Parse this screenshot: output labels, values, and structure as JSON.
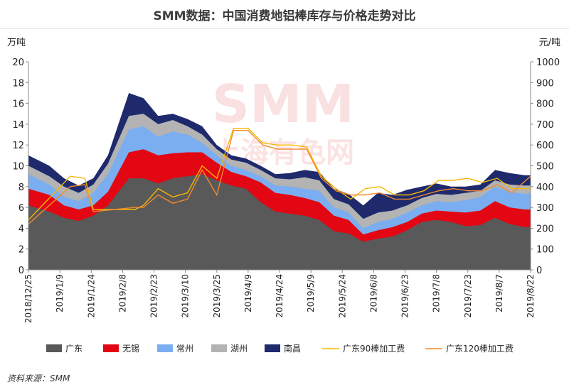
{
  "title": "SMM数据：中国消费地铝棒库存与价格走势对比",
  "source": "资料来源：SMM",
  "watermark": {
    "main": "SMM",
    "sub": "上海有色网"
  },
  "chart_data": {
    "type": "area",
    "left_unit": "万吨",
    "right_unit": "元/吨",
    "ylim_left": [
      0,
      20
    ],
    "yticks_left": [
      0,
      2,
      4,
      6,
      8,
      10,
      12,
      14,
      16,
      18,
      20
    ],
    "ylim_right": [
      0,
      1000
    ],
    "yticks_right": [
      0,
      100,
      200,
      300,
      400,
      500,
      600,
      700,
      800,
      900,
      1000
    ],
    "x_tick_labels": [
      "2018/12/25",
      "2019/1/9",
      "2019/1/24",
      "2019/2/8",
      "2019/2/23",
      "2019/3/10",
      "2019/3/25",
      "2019/4/9",
      "2019/4/24",
      "2019/5/9",
      "2019/5/24",
      "2019/6/8",
      "2019/6/23",
      "2019/7/8",
      "2019/7/23",
      "2019/8/7",
      "2019/8/22"
    ],
    "x_range": [
      "2018/12/25",
      "2019/8/22"
    ],
    "area_series": [
      {
        "name": "广东",
        "color": "#595959",
        "points": [
          [
            "2018/12/25",
            6.2
          ],
          [
            "2019/1/4",
            5.6
          ],
          [
            "2019/1/11",
            5.0
          ],
          [
            "2019/1/18",
            4.7
          ],
          [
            "2019/1/25",
            5.2
          ],
          [
            "2019/2/1",
            6.2
          ],
          [
            "2019/2/11",
            8.8
          ],
          [
            "2019/2/18",
            8.8
          ],
          [
            "2019/2/25",
            8.3
          ],
          [
            "2019/3/4",
            8.8
          ],
          [
            "2019/3/11",
            9.0
          ],
          [
            "2019/3/18",
            9.2
          ],
          [
            "2019/3/25",
            8.6
          ],
          [
            "2019/4/1",
            8.1
          ],
          [
            "2019/4/8",
            7.8
          ],
          [
            "2019/4/15",
            6.5
          ],
          [
            "2019/4/22",
            5.6
          ],
          [
            "2019/4/29",
            5.4
          ],
          [
            "2019/5/6",
            5.2
          ],
          [
            "2019/5/13",
            4.8
          ],
          [
            "2019/5/20",
            3.7
          ],
          [
            "2019/5/27",
            3.5
          ],
          [
            "2019/6/3",
            2.7
          ],
          [
            "2019/6/10",
            3.0
          ],
          [
            "2019/6/17",
            3.2
          ],
          [
            "2019/6/24",
            3.8
          ],
          [
            "2019/7/1",
            4.6
          ],
          [
            "2019/7/8",
            4.8
          ],
          [
            "2019/7/15",
            4.6
          ],
          [
            "2019/7/22",
            4.2
          ],
          [
            "2019/7/29",
            4.3
          ],
          [
            "2019/8/5",
            5.0
          ],
          [
            "2019/8/12",
            4.4
          ],
          [
            "2019/8/19",
            4.1
          ],
          [
            "2019/8/22",
            4.1
          ]
        ]
      },
      {
        "name": "无锡",
        "color": "#e30613",
        "points": [
          [
            "2018/12/25",
            7.8
          ],
          [
            "2019/1/4",
            7.2
          ],
          [
            "2019/1/11",
            6.2
          ],
          [
            "2019/1/18",
            5.8
          ],
          [
            "2019/1/25",
            6.2
          ],
          [
            "2019/2/1",
            7.5
          ],
          [
            "2019/2/11",
            11.3
          ],
          [
            "2019/2/18",
            11.6
          ],
          [
            "2019/2/25",
            11.0
          ],
          [
            "2019/3/4",
            11.2
          ],
          [
            "2019/3/11",
            11.3
          ],
          [
            "2019/3/18",
            11.3
          ],
          [
            "2019/3/25",
            10.3
          ],
          [
            "2019/4/1",
            9.4
          ],
          [
            "2019/4/8",
            9.0
          ],
          [
            "2019/4/15",
            8.4
          ],
          [
            "2019/4/22",
            7.4
          ],
          [
            "2019/4/29",
            7.2
          ],
          [
            "2019/5/6",
            6.9
          ],
          [
            "2019/5/13",
            6.5
          ],
          [
            "2019/5/20",
            5.2
          ],
          [
            "2019/5/27",
            4.8
          ],
          [
            "2019/6/3",
            3.4
          ],
          [
            "2019/6/10",
            3.8
          ],
          [
            "2019/6/17",
            4.1
          ],
          [
            "2019/6/24",
            4.6
          ],
          [
            "2019/7/1",
            5.4
          ],
          [
            "2019/7/8",
            5.7
          ],
          [
            "2019/7/15",
            5.6
          ],
          [
            "2019/7/22",
            5.5
          ],
          [
            "2019/7/29",
            5.7
          ],
          [
            "2019/8/5",
            6.6
          ],
          [
            "2019/8/12",
            6.0
          ],
          [
            "2019/8/19",
            5.8
          ],
          [
            "2019/8/22",
            5.8
          ]
        ]
      },
      {
        "name": "常州",
        "color": "#7aaef0",
        "points": [
          [
            "2018/12/25",
            9.2
          ],
          [
            "2019/1/4",
            8.2
          ],
          [
            "2019/1/11",
            7.0
          ],
          [
            "2019/1/18",
            6.6
          ],
          [
            "2019/1/25",
            7.4
          ],
          [
            "2019/2/1",
            9.2
          ],
          [
            "2019/2/11",
            13.5
          ],
          [
            "2019/2/18",
            13.8
          ],
          [
            "2019/2/25",
            12.8
          ],
          [
            "2019/3/4",
            13.3
          ],
          [
            "2019/3/11",
            13.0
          ],
          [
            "2019/3/18",
            12.2
          ],
          [
            "2019/3/25",
            11.0
          ],
          [
            "2019/4/1",
            10.0
          ],
          [
            "2019/4/8",
            9.6
          ],
          [
            "2019/4/15",
            9.0
          ],
          [
            "2019/4/22",
            8.1
          ],
          [
            "2019/4/29",
            8.0
          ],
          [
            "2019/5/6",
            7.8
          ],
          [
            "2019/5/13",
            7.6
          ],
          [
            "2019/5/20",
            6.0
          ],
          [
            "2019/5/27",
            5.5
          ],
          [
            "2019/6/3",
            4.0
          ],
          [
            "2019/6/10",
            4.6
          ],
          [
            "2019/6/17",
            4.9
          ],
          [
            "2019/6/24",
            5.5
          ],
          [
            "2019/7/1",
            6.2
          ],
          [
            "2019/7/8",
            6.6
          ],
          [
            "2019/7/15",
            6.5
          ],
          [
            "2019/7/22",
            6.7
          ],
          [
            "2019/7/29",
            7.0
          ],
          [
            "2019/8/5",
            8.0
          ],
          [
            "2019/8/12",
            7.5
          ],
          [
            "2019/8/19",
            7.3
          ],
          [
            "2019/8/22",
            7.4
          ]
        ]
      },
      {
        "name": "湖州",
        "color": "#b3b3b3",
        "points": [
          [
            "2018/12/25",
            10.0
          ],
          [
            "2019/1/4",
            9.0
          ],
          [
            "2019/1/11",
            8.0
          ],
          [
            "2019/1/18",
            7.4
          ],
          [
            "2019/1/25",
            8.2
          ],
          [
            "2019/2/1",
            10.2
          ],
          [
            "2019/2/11",
            14.8
          ],
          [
            "2019/2/18",
            15.0
          ],
          [
            "2019/2/25",
            14.0
          ],
          [
            "2019/3/4",
            14.4
          ],
          [
            "2019/3/11",
            13.8
          ],
          [
            "2019/3/18",
            13.0
          ],
          [
            "2019/3/25",
            11.6
          ],
          [
            "2019/4/1",
            10.6
          ],
          [
            "2019/4/8",
            10.3
          ],
          [
            "2019/4/15",
            9.6
          ],
          [
            "2019/4/22",
            8.8
          ],
          [
            "2019/4/29",
            8.7
          ],
          [
            "2019/5/6",
            8.9
          ],
          [
            "2019/5/13",
            8.6
          ],
          [
            "2019/5/20",
            6.8
          ],
          [
            "2019/5/27",
            6.3
          ],
          [
            "2019/6/3",
            4.9
          ],
          [
            "2019/6/10",
            5.5
          ],
          [
            "2019/6/17",
            5.7
          ],
          [
            "2019/6/24",
            6.2
          ],
          [
            "2019/7/1",
            6.9
          ],
          [
            "2019/7/8",
            7.3
          ],
          [
            "2019/7/15",
            7.2
          ],
          [
            "2019/7/22",
            7.4
          ],
          [
            "2019/7/29",
            7.6
          ],
          [
            "2019/8/5",
            8.6
          ],
          [
            "2019/8/12",
            8.2
          ],
          [
            "2019/8/19",
            8.1
          ],
          [
            "2019/8/22",
            8.1
          ]
        ]
      },
      {
        "name": "南昌",
        "color": "#1e2a6c",
        "points": [
          [
            "2018/12/25",
            11.0
          ],
          [
            "2019/1/4",
            10.0
          ],
          [
            "2019/1/11",
            8.8
          ],
          [
            "2019/1/18",
            8.1
          ],
          [
            "2019/1/25",
            8.8
          ],
          [
            "2019/2/1",
            11.0
          ],
          [
            "2019/2/11",
            17.0
          ],
          [
            "2019/2/18",
            16.5
          ],
          [
            "2019/2/25",
            14.8
          ],
          [
            "2019/3/4",
            15.0
          ],
          [
            "2019/3/11",
            14.5
          ],
          [
            "2019/3/18",
            13.8
          ],
          [
            "2019/3/25",
            12.0
          ],
          [
            "2019/4/1",
            11.0
          ],
          [
            "2019/4/8",
            10.7
          ],
          [
            "2019/4/15",
            10.0
          ],
          [
            "2019/4/22",
            9.2
          ],
          [
            "2019/4/29",
            9.3
          ],
          [
            "2019/5/6",
            9.6
          ],
          [
            "2019/5/13",
            9.4
          ],
          [
            "2019/5/20",
            7.8
          ],
          [
            "2019/5/27",
            7.3
          ],
          [
            "2019/6/3",
            6.2
          ],
          [
            "2019/6/10",
            7.4
          ],
          [
            "2019/6/17",
            7.2
          ],
          [
            "2019/6/24",
            7.7
          ],
          [
            "2019/7/1",
            8.0
          ],
          [
            "2019/7/8",
            8.3
          ],
          [
            "2019/7/15",
            8.0
          ],
          [
            "2019/7/22",
            8.0
          ],
          [
            "2019/7/29",
            8.2
          ],
          [
            "2019/8/5",
            9.6
          ],
          [
            "2019/8/12",
            9.3
          ],
          [
            "2019/8/19",
            9.1
          ],
          [
            "2019/8/22",
            9.1
          ]
        ]
      }
    ],
    "line_series": [
      {
        "name": "广东90棒加工费",
        "color": "#f5b800",
        "points": [
          [
            "2018/12/25",
            240
          ],
          [
            "2019/1/14",
            450
          ],
          [
            "2019/1/21",
            440
          ],
          [
            "2019/1/25",
            290
          ],
          [
            "2019/2/14",
            290
          ],
          [
            "2019/2/18",
            310
          ],
          [
            "2019/2/25",
            390
          ],
          [
            "2019/3/4",
            350
          ],
          [
            "2019/3/11",
            370
          ],
          [
            "2019/3/18",
            500
          ],
          [
            "2019/3/25",
            440
          ],
          [
            "2019/4/2",
            680
          ],
          [
            "2019/4/9",
            680
          ],
          [
            "2019/4/16",
            610
          ],
          [
            "2019/4/23",
            600
          ],
          [
            "2019/4/30",
            600
          ],
          [
            "2019/5/7",
            590
          ],
          [
            "2019/5/14",
            450
          ],
          [
            "2019/5/21",
            390
          ],
          [
            "2019/5/28",
            340
          ],
          [
            "2019/6/4",
            390
          ],
          [
            "2019/6/11",
            400
          ],
          [
            "2019/6/18",
            360
          ],
          [
            "2019/6/25",
            360
          ],
          [
            "2019/7/2",
            380
          ],
          [
            "2019/7/9",
            430
          ],
          [
            "2019/7/16",
            430
          ],
          [
            "2019/7/23",
            440
          ],
          [
            "2019/7/30",
            420
          ],
          [
            "2019/8/6",
            440
          ],
          [
            "2019/8/13",
            390
          ],
          [
            "2019/8/22",
            390
          ]
        ]
      },
      {
        "name": "广东120棒加工费",
        "color": "#f28a2e",
        "points": [
          [
            "2018/12/25",
            220
          ],
          [
            "2019/1/14",
            400
          ],
          [
            "2019/1/21",
            410
          ],
          [
            "2019/1/25",
            280
          ],
          [
            "2019/2/14",
            300
          ],
          [
            "2019/2/18",
            300
          ],
          [
            "2019/2/25",
            360
          ],
          [
            "2019/3/4",
            320
          ],
          [
            "2019/3/11",
            340
          ],
          [
            "2019/3/18",
            480
          ],
          [
            "2019/3/25",
            360
          ],
          [
            "2019/4/2",
            670
          ],
          [
            "2019/4/9",
            670
          ],
          [
            "2019/4/16",
            600
          ],
          [
            "2019/4/23",
            580
          ],
          [
            "2019/4/30",
            580
          ],
          [
            "2019/5/7",
            580
          ],
          [
            "2019/5/14",
            440
          ],
          [
            "2019/5/21",
            380
          ],
          [
            "2019/5/28",
            360
          ],
          [
            "2019/6/4",
            360
          ],
          [
            "2019/6/11",
            370
          ],
          [
            "2019/6/18",
            340
          ],
          [
            "2019/6/25",
            340
          ],
          [
            "2019/7/2",
            360
          ],
          [
            "2019/7/9",
            380
          ],
          [
            "2019/7/16",
            390
          ],
          [
            "2019/7/23",
            380
          ],
          [
            "2019/7/30",
            380
          ],
          [
            "2019/8/6",
            410
          ],
          [
            "2019/8/13",
            370
          ],
          [
            "2019/8/22",
            450
          ]
        ]
      }
    ],
    "legend_position": "bottom",
    "grid": false
  }
}
